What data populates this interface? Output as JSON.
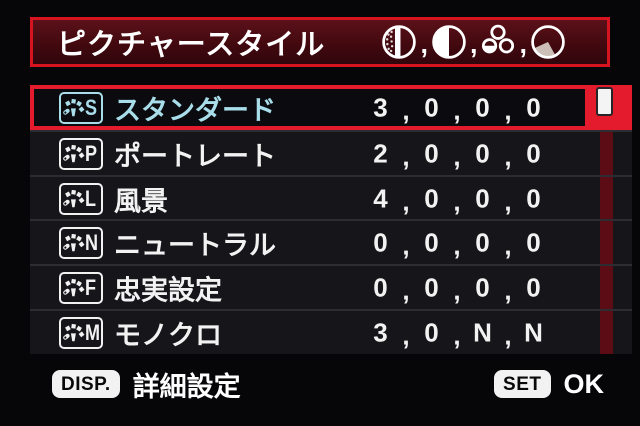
{
  "header": {
    "title": "ピクチャースタイル",
    "icon_separator": ",",
    "param_icons": [
      "sharpness-icon",
      "contrast-icon",
      "saturation-icon",
      "color-tone-icon"
    ]
  },
  "value_separator": ",",
  "styles": [
    {
      "letter": "S",
      "label": "スタンダード",
      "values": [
        "3",
        "0",
        "0",
        "0"
      ],
      "selected": true
    },
    {
      "letter": "P",
      "label": "ポートレート",
      "values": [
        "2",
        "0",
        "0",
        "0"
      ],
      "selected": false
    },
    {
      "letter": "L",
      "label": "風景",
      "values": [
        "4",
        "0",
        "0",
        "0"
      ],
      "selected": false
    },
    {
      "letter": "N",
      "label": "ニュートラル",
      "values": [
        "0",
        "0",
        "0",
        "0"
      ],
      "selected": false
    },
    {
      "letter": "F",
      "label": "忠実設定",
      "values": [
        "0",
        "0",
        "0",
        "0"
      ],
      "selected": false
    },
    {
      "letter": "M",
      "label": "モノクロ",
      "values": [
        "3",
        "0",
        "N",
        "N"
      ],
      "selected": false
    }
  ],
  "footer": {
    "disp_button": "DISP.",
    "disp_label": "詳細設定",
    "set_button": "SET",
    "set_label": "OK"
  },
  "colors": {
    "accent_red": "#e31b2c",
    "header_border": "#d6141f",
    "selected_text_cyan": "#a8dde9",
    "scroll_track_red": "#5c0c15",
    "row_background": "#15151a",
    "text_white": "#f2f2f2"
  }
}
